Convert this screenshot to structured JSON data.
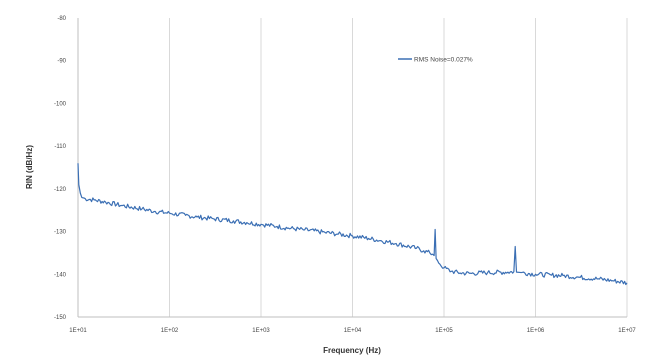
{
  "chart_data": {
    "type": "line",
    "xscale": "log",
    "xlim": [
      10,
      10000000
    ],
    "ylim": [
      -150,
      -80
    ],
    "xlabel": "Frequency (Hz)",
    "ylabel": "RIN (dB/Hz)",
    "grid": "vertical-at-decades",
    "legend_position": "top-right",
    "x_tick_labels": [
      "1E+01",
      "1E+02",
      "1E+03",
      "1E+04",
      "1E+05",
      "1E+06",
      "1E+07"
    ],
    "y_tick_labels": [
      "-80",
      "-90",
      "-100",
      "-110",
      "-120",
      "-130",
      "-140",
      "-150"
    ],
    "series": [
      {
        "name": "RMS Noise=0.027%",
        "color": "#3b6fb4",
        "x": [
          10,
          10.2,
          10.6,
          11,
          12,
          15,
          20,
          30,
          50,
          70,
          100,
          150,
          200,
          300,
          500,
          700,
          1000,
          1500,
          2000,
          3000,
          5000,
          7000,
          10000,
          15000,
          20000,
          30000,
          50000,
          60000,
          70000,
          75000,
          78000,
          80000,
          82000,
          85000,
          90000,
          100000,
          120000,
          150000,
          200000,
          300000,
          500000,
          580000,
          600000,
          620000,
          700000,
          1000000,
          1500000,
          2000000,
          3000000,
          5000000,
          7000000,
          10000000
        ],
        "y": [
          -114,
          -119,
          -121,
          -122,
          -122.3,
          -122.6,
          -123.1,
          -123.9,
          -124.7,
          -125.3,
          -125.7,
          -126.2,
          -126.6,
          -127.0,
          -127.5,
          -127.9,
          -128.3,
          -128.8,
          -129.2,
          -129.6,
          -130.2,
          -130.6,
          -131.0,
          -131.6,
          -132.1,
          -132.8,
          -133.9,
          -134.5,
          -135.0,
          -135.3,
          -135.6,
          -129.5,
          -136.3,
          -136.8,
          -137.6,
          -138.5,
          -139.3,
          -139.7,
          -139.8,
          -139.6,
          -139.5,
          -139.4,
          -133.5,
          -139.5,
          -139.6,
          -140.0,
          -140.2,
          -140.3,
          -140.7,
          -141.1,
          -141.5,
          -142.0
        ]
      }
    ]
  }
}
